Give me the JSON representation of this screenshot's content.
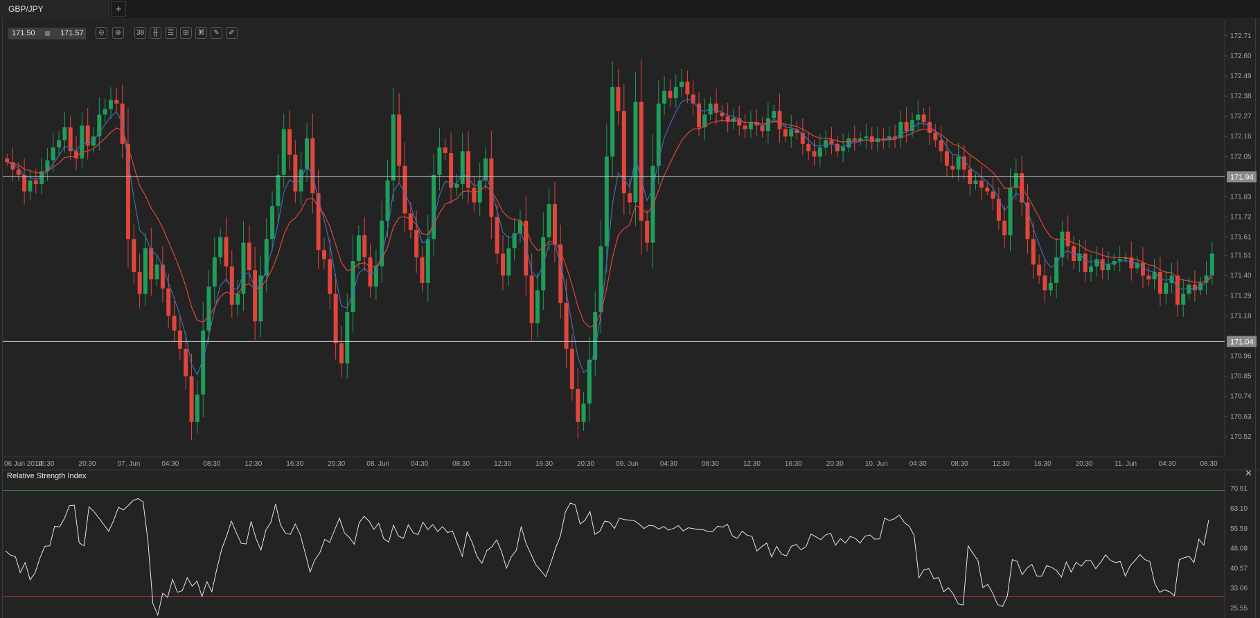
{
  "tab": {
    "title": "GBP/JPY",
    "add_label": "+"
  },
  "quote": {
    "bid": "171.50",
    "ask": "171.57"
  },
  "toolbar": [
    {
      "name": "zoom-out-icon",
      "glyph": "⊖"
    },
    {
      "name": "zoom-in-icon",
      "glyph": "⊕"
    },
    {
      "name": "timeframe-icon",
      "glyph": "38"
    },
    {
      "name": "candlestick-type-icon",
      "glyph": "╫"
    },
    {
      "name": "indicators-icon",
      "glyph": "☰"
    },
    {
      "name": "chart-settings-icon",
      "glyph": "⊞"
    },
    {
      "name": "attach-icon",
      "glyph": "⌘"
    },
    {
      "name": "edit-icon",
      "glyph": "✎"
    },
    {
      "name": "draw-icon",
      "glyph": "✐"
    }
  ],
  "colors": {
    "up": "#1e9e5a",
    "down": "#e0463c",
    "ma_fast": "#3d6fb6",
    "ma_slow": "#e0463c",
    "rsi_line": "#e6e6e6",
    "rsi_upper": "#3c8a3c",
    "rsi_lower": "#c03a2a"
  },
  "chart_data": [
    {
      "type": "candlestick",
      "symbol": "GBP/JPY",
      "ylim": [
        170.41,
        172.8
      ],
      "y_ticks": [
        "172.71",
        "172.60",
        "172.49",
        "172.38",
        "172.27",
        "172.16",
        "172.05",
        "171.94",
        "171.83",
        "171.72",
        "171.61",
        "171.51",
        "171.40",
        "171.29",
        "171.18",
        "171.04",
        "170.96",
        "170.85",
        "170.74",
        "170.63",
        "170.52"
      ],
      "x_ticks": [
        "06 Jun 2014",
        "16:30",
        "20:30",
        "07. Jun",
        "04:30",
        "08:30",
        "12:30",
        "16:30",
        "20:30",
        "08. Jun",
        "04:30",
        "08:30",
        "12:30",
        "16:30",
        "20:30",
        "09. Jun",
        "04:30",
        "08:30",
        "12:30",
        "16:30",
        "20:30",
        "10. Jun",
        "04:30",
        "08:30",
        "12:30",
        "16:30",
        "20:30",
        "11. Jun",
        "04:30",
        "08:30"
      ],
      "horizontal_lines": [
        {
          "value": 171.94,
          "label": "171.94"
        },
        {
          "value": 171.04,
          "label": "171.04"
        }
      ],
      "close": [
        172.02,
        171.98,
        171.95,
        171.86,
        171.92,
        171.9,
        171.97,
        172.03,
        172.1,
        172.14,
        172.21,
        172.08,
        172.04,
        172.22,
        172.11,
        172.16,
        172.28,
        172.31,
        172.36,
        172.34,
        172.12,
        171.6,
        171.42,
        171.3,
        171.55,
        171.38,
        171.46,
        171.33,
        171.18,
        171.1,
        171.0,
        170.85,
        170.6,
        170.75,
        171.1,
        171.34,
        171.5,
        171.61,
        171.45,
        171.24,
        171.3,
        171.58,
        171.43,
        171.15,
        171.4,
        171.6,
        171.78,
        171.95,
        172.2,
        172.06,
        171.86,
        171.98,
        172.15,
        171.85,
        171.54,
        171.49,
        171.3,
        171.03,
        170.92,
        171.2,
        171.48,
        171.62,
        171.5,
        171.34,
        171.45,
        171.7,
        171.92,
        172.28,
        172.0,
        171.74,
        171.65,
        171.5,
        171.36,
        171.6,
        171.95,
        172.1,
        172.07,
        171.88,
        171.9,
        172.08,
        171.88,
        171.8,
        171.92,
        172.04,
        171.72,
        171.52,
        171.4,
        171.55,
        171.63,
        171.7,
        171.4,
        171.14,
        171.32,
        171.61,
        171.79,
        171.57,
        171.25,
        171.0,
        170.78,
        170.6,
        170.7,
        170.94,
        171.2,
        171.56,
        172.05,
        172.43,
        172.3,
        171.85,
        171.8,
        172.35,
        171.7,
        171.58,
        172.0,
        172.34,
        172.41,
        172.37,
        172.43,
        172.46,
        172.39,
        172.34,
        172.21,
        172.28,
        172.34,
        172.29,
        172.27,
        172.24,
        172.26,
        172.22,
        172.2,
        172.24,
        172.22,
        172.19,
        172.26,
        172.3,
        172.2,
        172.16,
        172.2,
        172.18,
        172.12,
        172.08,
        172.05,
        172.1,
        172.14,
        172.12,
        172.08,
        172.1,
        172.15,
        172.14,
        172.15,
        172.16,
        172.13,
        172.15,
        172.14,
        172.16,
        172.15,
        172.24,
        172.19,
        172.25,
        172.28,
        172.24,
        172.18,
        172.14,
        172.08,
        172.0,
        171.98,
        172.05,
        171.98,
        171.9,
        171.92,
        171.88,
        171.86,
        171.82,
        171.7,
        171.62,
        171.88,
        171.96,
        171.8,
        171.6,
        171.46,
        171.4,
        171.32,
        171.36,
        171.5,
        171.64,
        171.56,
        171.48,
        171.52,
        171.42,
        171.45,
        171.49,
        171.43,
        171.46,
        171.48,
        171.49,
        171.5,
        171.44,
        171.47,
        171.4,
        171.38,
        171.42,
        171.3,
        171.36,
        171.4,
        171.24,
        171.3,
        171.35,
        171.32,
        171.36,
        171.4,
        171.52
      ]
    },
    {
      "type": "line",
      "title": "Relative Strength Index",
      "ylim": [
        21.9,
        74.3
      ],
      "y_ticks": [
        "70.61",
        "63.10",
        "55.59",
        "48.08",
        "40.57",
        "33.06",
        "25.55"
      ],
      "levels": [
        70,
        30
      ],
      "values": [
        47.2,
        45.6,
        45.0,
        39.0,
        42.8,
        36.3,
        38.8,
        44.5,
        48.9,
        49.1,
        56.5,
        56.2,
        59.5,
        64.2,
        64.4,
        50.2,
        49.1,
        63.8,
        62.0,
        59.6,
        57.1,
        54.6,
        58.6,
        63.6,
        62.6,
        64.3,
        66.2,
        66.9,
        65.7,
        50.9,
        27.4,
        23.0,
        31.2,
        29.7,
        36.5,
        31.6,
        32.2,
        37.1,
        33.9,
        35.8,
        30.0,
        35.6,
        31.8,
        40.2,
        47.8,
        52.7,
        58.4,
        54.0,
        50.0,
        49.8,
        58.3,
        51.8,
        47.5,
        55.0,
        57.8,
        64.8,
        56.9,
        53.9,
        53.4,
        57.3,
        53.4,
        46.5,
        39.2,
        43.9,
        46.5,
        51.5,
        50.4,
        55.0,
        59.5,
        54.0,
        52.3,
        49.7,
        57.8,
        60.2,
        58.5,
        55.3,
        57.6,
        51.8,
        50.5,
        56.8,
        52.8,
        51.9,
        57.0,
        54.0,
        53.3,
        58.0,
        55.2,
        57.1,
        54.5,
        56.3,
        54.1,
        54.7,
        49.9,
        45.1,
        54.3,
        50.5,
        45.1,
        42.5,
        47.3,
        48.7,
        51.3,
        46.9,
        40.7,
        45.0,
        47.4,
        56.3,
        49.9,
        45.9,
        41.9,
        39.7,
        37.5,
        42.5,
        48.2,
        52.9,
        61.8,
        65.2,
        64.5,
        57.3,
        58.7,
        62.0,
        53.4,
        54.6,
        58.4,
        58.0,
        55.6,
        59.5,
        59.0,
        58.8,
        58.6,
        57.3,
        55.6,
        56.8,
        56.6,
        55.4,
        56.4,
        55.0,
        55.6,
        56.7,
        54.7,
        55.9,
        55.6,
        55.2,
        55.2,
        54.5,
        54.5,
        56.5,
        56.1,
        57.2,
        52.8,
        51.9,
        54.6,
        53.1,
        52.6,
        47.1,
        48.8,
        50.1,
        44.9,
        48.9,
        46.0,
        45.3,
        48.9,
        49.6,
        47.6,
        48.8,
        53.5,
        52.5,
        51.4,
        53.2,
        53.8,
        49.3,
        51.8,
        50.1,
        52.6,
        52.0,
        50.1,
        52.7,
        53.2,
        51.6,
        51.7,
        59.5,
        58.6,
        59.3,
        60.7,
        57.9,
        56.5,
        53.1,
        37.1,
        40.1,
        40.5,
        36.8,
        37.1,
        31.8,
        33.3,
        30.9,
        27.2,
        26.8,
        49.1,
        46.2,
        43.6,
        33.4,
        34.6,
        31.3,
        27.0,
        26.2,
        30.2,
        43.9,
        43.2,
        38.2,
        40.7,
        42.1,
        37.7,
        37.7,
        41.6,
        41.0,
        39.8,
        37.3,
        43.0,
        39.2,
        42.9,
        41.4,
        43.6,
        43.5,
        40.5,
        42.9,
        45.7,
        43.6,
        42.8,
        43.2,
        37.7,
        41.6,
        43.6,
        45.8,
        43.9,
        43.2,
        34.9,
        31.6,
        32.5,
        31.8,
        30.3,
        43.9,
        44.6,
        45.1,
        42.8,
        51.6,
        49.3,
        58.9
      ]
    }
  ]
}
